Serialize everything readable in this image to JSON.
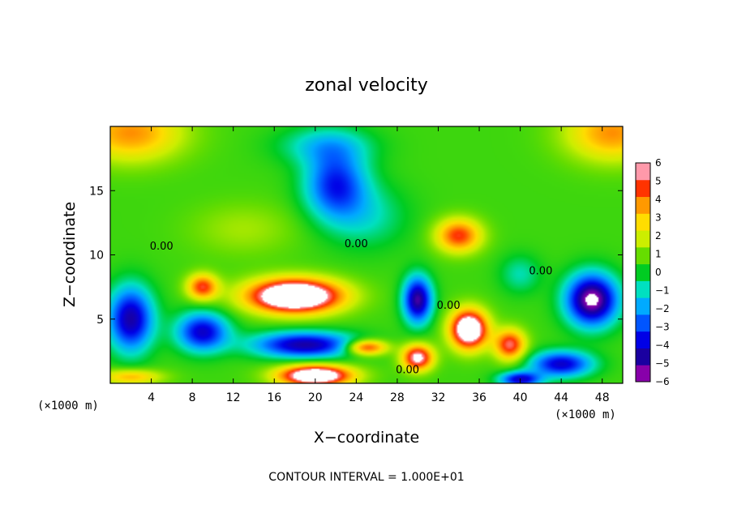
{
  "chart_data": {
    "type": "heatmap",
    "title": "zonal velocity",
    "xlabel": "X−coordinate",
    "ylabel": "Z−coordinate",
    "x_unit_label": "(×1000 m)",
    "y_unit_label": "(×1000 m)",
    "xlim": [
      0,
      50
    ],
    "ylim": [
      0,
      20
    ],
    "x_ticks": [
      4,
      8,
      12,
      16,
      20,
      24,
      28,
      32,
      36,
      40,
      44,
      48
    ],
    "y_ticks": [
      5,
      10,
      15
    ],
    "x_tick_labels": [
      "4",
      "8",
      "12",
      "16",
      "20",
      "24",
      "28",
      "32",
      "36",
      "40",
      "44",
      "48"
    ],
    "y_tick_labels": [
      "5",
      "10",
      "15"
    ],
    "colorbar": {
      "min": -6,
      "max": 6,
      "ticks": [
        6,
        5,
        4,
        3,
        2,
        1,
        0,
        -1,
        -2,
        -3,
        -4,
        -5,
        -6
      ],
      "tick_labels": [
        "6",
        "5",
        "4",
        "3",
        "2",
        "1",
        "0",
        "−1",
        "−2",
        "−3",
        "−4",
        "−5",
        "−6"
      ],
      "colors": [
        "#8800aa",
        "#1a00a0",
        "#0000e6",
        "#0055ff",
        "#00aaff",
        "#00e0c0",
        "#00cc22",
        "#66dd00",
        "#ccee00",
        "#ffdd00",
        "#ff9900",
        "#ff3300",
        "#ff99aa"
      ]
    },
    "features": [
      {
        "x": 22,
        "z": 15.5,
        "value": -4.2,
        "sx": 3.0,
        "sz": 2.6
      },
      {
        "x": 21,
        "z": 18.5,
        "value": -2.0,
        "sx": 4.5,
        "sz": 1.5
      },
      {
        "x": 25,
        "z": 13.0,
        "value": -1.5,
        "sx": 4.0,
        "sz": 2.5
      },
      {
        "x": 2,
        "z": 19.5,
        "value": 3.5,
        "sx": 5.0,
        "sz": 2.2
      },
      {
        "x": 49,
        "z": 19.5,
        "value": 3.5,
        "sx": 4.5,
        "sz": 2.2
      },
      {
        "x": 34,
        "z": 11.5,
        "value": 4.5,
        "sx": 2.2,
        "sz": 1.3
      },
      {
        "x": 18,
        "z": 6.8,
        "value": 9.0,
        "sx": 4.5,
        "sz": 1.3
      },
      {
        "x": 9,
        "z": 7.5,
        "value": 4.5,
        "sx": 1.5,
        "sz": 1.0
      },
      {
        "x": 30,
        "z": 6.5,
        "value": -6.0,
        "sx": 1.4,
        "sz": 1.8
      },
      {
        "x": 35,
        "z": 4.2,
        "value": 8.0,
        "sx": 1.8,
        "sz": 1.5
      },
      {
        "x": 47,
        "z": 6.5,
        "value": -7.0,
        "sx": 2.5,
        "sz": 2.0
      },
      {
        "x": 2,
        "z": 5.0,
        "value": -5.5,
        "sx": 2.2,
        "sz": 2.5
      },
      {
        "x": 9,
        "z": 4.0,
        "value": -5.0,
        "sx": 2.5,
        "sz": 1.5
      },
      {
        "x": 19,
        "z": 3.0,
        "value": -5.5,
        "sx": 5.0,
        "sz": 1.0
      },
      {
        "x": 20,
        "z": 0.6,
        "value": 8.0,
        "sx": 3.5,
        "sz": 0.8
      },
      {
        "x": 30,
        "z": 2.0,
        "value": 6.0,
        "sx": 1.5,
        "sz": 1.0
      },
      {
        "x": 25,
        "z": 2.8,
        "value": 5.0,
        "sx": 2.0,
        "sz": 0.6
      },
      {
        "x": 39,
        "z": 3.0,
        "value": 5.0,
        "sx": 1.5,
        "sz": 1.2
      },
      {
        "x": 44,
        "z": 1.5,
        "value": -5.0,
        "sx": 3.0,
        "sz": 1.0
      },
      {
        "x": 40,
        "z": 0.3,
        "value": -5.0,
        "sx": 2.0,
        "sz": 0.6
      },
      {
        "x": 2,
        "z": 0.5,
        "value": 3.0,
        "sx": 3.0,
        "sz": 0.6
      },
      {
        "x": 40,
        "z": 8.5,
        "value": -1.5,
        "sx": 2.0,
        "sz": 1.5
      },
      {
        "x": 13,
        "z": 12.0,
        "value": 1.0,
        "sx": 5.0,
        "sz": 2.0
      }
    ],
    "contour_labels": [
      {
        "text": "0.00",
        "x": 5,
        "z": 10.4
      },
      {
        "text": "0.00",
        "x": 24,
        "z": 10.6
      },
      {
        "text": "0.00",
        "x": 33,
        "z": 5.8
      },
      {
        "text": "0.00",
        "x": 42,
        "z": 8.5
      },
      {
        "text": "0.00",
        "x": 29,
        "z": 0.8
      }
    ]
  },
  "note": "CONTOUR INTERVAL = 1.000E+01"
}
